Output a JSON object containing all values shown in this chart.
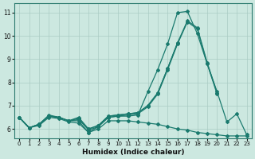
{
  "xlabel": "Humidex (Indice chaleur)",
  "xlim": [
    -0.5,
    23.5
  ],
  "ylim": [
    5.6,
    11.4
  ],
  "yticks": [
    6,
    7,
    8,
    9,
    10,
    11
  ],
  "xticks": [
    0,
    1,
    2,
    3,
    4,
    5,
    6,
    7,
    8,
    9,
    10,
    11,
    12,
    13,
    14,
    15,
    16,
    17,
    18,
    19,
    20,
    21,
    22,
    23
  ],
  "bg_color": "#cce8e0",
  "grid_color": "#aaccC4",
  "line_color": "#1a7a6e",
  "lines": [
    {
      "x": [
        0,
        1,
        2,
        3,
        4,
        5,
        6,
        7,
        8,
        9,
        10,
        11,
        12,
        13,
        14,
        15,
        16,
        17,
        18,
        19,
        20,
        21,
        22,
        23
      ],
      "y": [
        6.5,
        6.05,
        6.2,
        6.6,
        6.5,
        6.35,
        6.35,
        5.85,
        6.1,
        6.5,
        6.55,
        6.55,
        6.6,
        7.6,
        8.55,
        9.65,
        11.0,
        11.05,
        10.1,
        8.8,
        7.6,
        6.3,
        6.65,
        5.75
      ]
    },
    {
      "x": [
        0,
        1,
        2,
        3,
        4,
        5,
        6,
        7,
        8,
        9,
        10,
        11,
        12,
        13,
        14,
        15,
        16,
        17,
        18,
        19,
        20
      ],
      "y": [
        6.5,
        6.05,
        6.2,
        6.55,
        6.5,
        6.35,
        6.4,
        6.0,
        6.15,
        6.55,
        6.6,
        6.65,
        6.7,
        7.0,
        7.55,
        8.6,
        9.7,
        10.65,
        10.35,
        8.85,
        7.55
      ]
    },
    {
      "x": [
        0,
        1,
        2,
        3,
        4,
        5,
        6,
        7,
        8,
        9,
        10,
        11,
        12,
        13,
        14,
        15,
        16
      ],
      "y": [
        6.5,
        6.05,
        6.2,
        6.55,
        6.5,
        6.35,
        6.5,
        6.0,
        6.15,
        6.55,
        6.6,
        6.65,
        6.7,
        7.0,
        7.55,
        8.6,
        9.7
      ]
    },
    {
      "x": [
        0,
        1,
        2,
        3,
        4,
        5,
        6,
        7,
        8,
        9,
        10,
        11,
        12,
        13,
        14,
        15,
        16,
        17,
        18,
        19,
        20,
        21,
        22,
        23
      ],
      "y": [
        6.5,
        6.05,
        6.15,
        6.5,
        6.45,
        6.3,
        6.25,
        5.85,
        6.0,
        6.35,
        6.35,
        6.35,
        6.3,
        6.25,
        6.2,
        6.1,
        6.0,
        5.95,
        5.85,
        5.8,
        5.75,
        5.7,
        5.7,
        5.7
      ]
    },
    {
      "x": [
        0,
        1,
        2,
        3,
        4,
        5,
        6,
        7,
        8,
        9,
        10,
        11,
        12,
        13,
        14,
        15,
        16,
        17,
        18,
        19,
        20
      ],
      "y": [
        6.5,
        6.05,
        6.2,
        6.55,
        6.5,
        6.35,
        6.45,
        5.95,
        6.1,
        6.5,
        6.55,
        6.6,
        6.65,
        6.95,
        7.5,
        8.55,
        9.65,
        10.6,
        10.3,
        8.8,
        7.5
      ]
    }
  ]
}
